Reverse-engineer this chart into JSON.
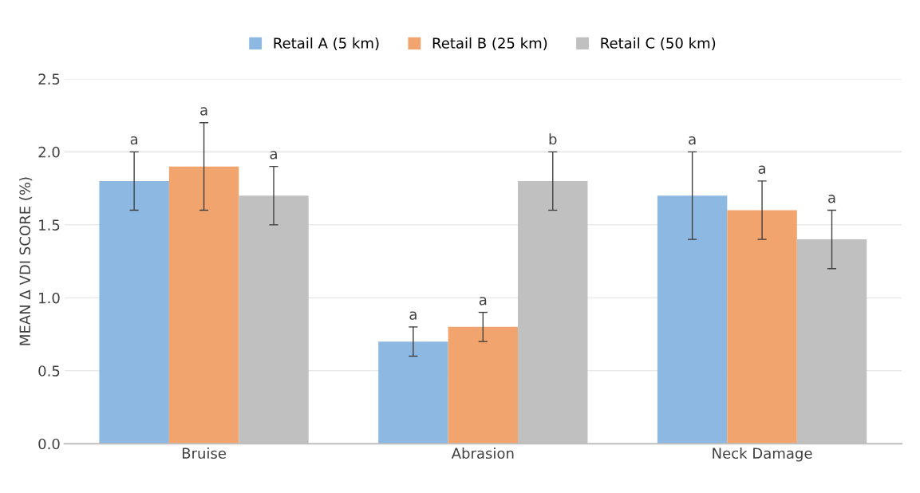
{
  "chart_data": {
    "type": "bar",
    "ylabel": "MEAN Δ VDI SCORE (%)",
    "categories": [
      "Bruise",
      "Abrasion",
      "Neck Damage"
    ],
    "series": [
      {
        "name": "Retail A (5 km)",
        "color": "#8db8e2",
        "values": [
          1.8,
          0.7,
          1.7
        ],
        "errors": [
          0.2,
          0.1,
          0.3
        ]
      },
      {
        "name": "Retail B (25 km)",
        "color": "#f1a46e",
        "values": [
          1.9,
          0.8,
          1.6
        ],
        "errors": [
          0.3,
          0.1,
          0.2
        ]
      },
      {
        "name": "Retail C (50 km)",
        "color": "#c0c0c0",
        "values": [
          1.7,
          1.8,
          1.4
        ],
        "errors": [
          0.2,
          0.2,
          0.2
        ]
      }
    ],
    "annotations": [
      "a",
      "a",
      "a",
      "a",
      "a",
      "b",
      "a",
      "a",
      "a"
    ],
    "ylim": [
      0,
      2.5
    ],
    "yticks": [
      {
        "value": 0,
        "label": "0.0"
      },
      {
        "value": 0.5,
        "label": "0.5"
      },
      {
        "value": 1,
        "label": "1.0"
      },
      {
        "value": 1.5,
        "label": "1.5"
      },
      {
        "value": 2,
        "label": "2.0"
      },
      {
        "value": 2.5,
        "label": "2.5"
      }
    ],
    "grid": "y",
    "legend": "top"
  }
}
